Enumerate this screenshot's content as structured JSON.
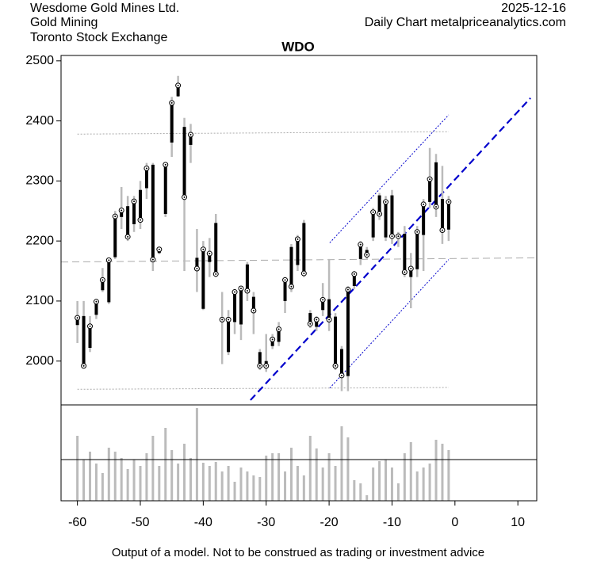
{
  "chart_data": {
    "type": "ohlc",
    "title": "WDO",
    "header_left": [
      "Wesdome Gold Mines Ltd.",
      "Gold Mining",
      "Toronto Stock Exchange"
    ],
    "header_right": [
      "2025-12-16",
      "Daily Chart metalpriceanalytics.com"
    ],
    "footer": "Output of a model. Not to be construed as trading or investment advice",
    "x": [
      -60,
      -59,
      -58,
      -57,
      -56,
      -55,
      -54,
      -53,
      -52,
      -51,
      -50,
      -49,
      -48,
      -47,
      -46,
      -45,
      -44,
      -43,
      -42,
      -41,
      -40,
      -39,
      -38,
      -37,
      -36,
      -35,
      -34,
      -33,
      -32,
      -31,
      -30,
      -29,
      -28,
      -27,
      -26,
      -25,
      -24,
      -23,
      -22,
      -21,
      -20,
      -19,
      -18,
      -17,
      -16,
      -15,
      -14,
      -13,
      -12,
      -11,
      -10,
      -9,
      -8,
      -7,
      -6,
      -5,
      -4,
      -3,
      -2,
      -1
    ],
    "open": [
      2060,
      2075,
      2022,
      2077,
      2118,
      2098,
      2173,
      2240,
      2258,
      2228,
      2285,
      2288,
      2327,
      2180,
      2245,
      2364,
      2441,
      2390,
      2360,
      2172,
      2087,
      2165,
      2230,
      2069,
      2015,
      2065,
      2061,
      2161,
      2107,
      2015,
      2000,
      2025,
      2032,
      2100,
      2190,
      2160,
      2230,
      2080,
      2057,
      2085,
      2103,
      2074,
      2020,
      1975,
      2125,
      2170,
      2185,
      2206,
      2276,
      2206,
      2276,
      2210,
      2212,
      2140,
      2153,
      2210,
      2265,
      2331,
      2270,
      2219
    ],
    "high": [
      2100,
      2100,
      2075,
      2100,
      2155,
      2170,
      2250,
      2290,
      2275,
      2275,
      2300,
      2330,
      2330,
      2190,
      2330,
      2440,
      2475,
      2405,
      2395,
      2220,
      2200,
      2205,
      2245,
      2115,
      2085,
      2120,
      2125,
      2165,
      2115,
      2020,
      2045,
      2045,
      2065,
      2140,
      2195,
      2210,
      2235,
      2085,
      2075,
      2130,
      2170,
      2080,
      2025,
      2125,
      2150,
      2200,
      2190,
      2255,
      2280,
      2275,
      2285,
      2215,
      2225,
      2180,
      2225,
      2270,
      2355,
      2345,
      2325,
      2275
    ],
    "low": [
      2030,
      1990,
      2015,
      2070,
      2115,
      2095,
      2170,
      2220,
      2200,
      2215,
      2220,
      2270,
      2150,
      2178,
      2240,
      2340,
      2440,
      2150,
      2330,
      2115,
      2085,
      2140,
      2140,
      1995,
      2010,
      2045,
      2035,
      2100,
      2045,
      1985,
      1982,
      2020,
      2025,
      2080,
      2115,
      2150,
      2140,
      2055,
      2050,
      2075,
      2050,
      1985,
      1950,
      1950,
      2120,
      2160,
      2170,
      2200,
      2235,
      2200,
      2195,
      2190,
      2140,
      2088,
      2140,
      2150,
      2255,
      2240,
      2195,
      2200
    ],
    "close": [
      2072,
      1992,
      2058,
      2099,
      2135,
      2168,
      2241,
      2251,
      2207,
      2266,
      2235,
      2321,
      2169,
      2186,
      2327,
      2430,
      2459,
      2273,
      2377,
      2154,
      2186,
      2179,
      2145,
      2069,
      2069,
      2115,
      2121,
      2117,
      2084,
      1992,
      1992,
      2036,
      2053,
      2135,
      2124,
      2203,
      2146,
      2062,
      2069,
      2102,
      2069,
      1992,
      1976,
      2119,
      2145,
      2194,
      2177,
      2248,
      2245,
      2265,
      2208,
      2208,
      2148,
      2154,
      2215,
      2261,
      2303,
      2257,
      2218,
      2265
    ],
    "volume": [
      82,
      52,
      62,
      47,
      35,
      67,
      62,
      54,
      40,
      52,
      44,
      60,
      82,
      44,
      92,
      64,
      47,
      72,
      54,
      117,
      48,
      44,
      49,
      37,
      44,
      24,
      42,
      37,
      32,
      30,
      57,
      60,
      60,
      37,
      67,
      44,
      32,
      82,
      66,
      42,
      60,
      44,
      94,
      80,
      26,
      22,
      7,
      42,
      50,
      52,
      42,
      22,
      60,
      74,
      37,
      42,
      47,
      77,
      72,
      64
    ],
    "range_color": "#bbbbbb",
    "body_color": "#000000",
    "volume_color": "#bbbbbb",
    "lines": [
      {
        "x": [
          -62.6,
          13
        ],
        "y": [
          2165,
          2172
        ],
        "color": "#aaaaaa",
        "style": "dashed"
      },
      {
        "x": [
          -60,
          -1
        ],
        "y": [
          2378,
          2382
        ],
        "color": "#aaaaaa",
        "style": "dotted"
      },
      {
        "x": [
          -60,
          -1
        ],
        "y": [
          1953,
          1956
        ],
        "color": "#aaaaaa",
        "style": "dotted"
      },
      {
        "x": [
          -32.5,
          12
        ],
        "y": [
          1935,
          2438
        ],
        "color": "#0000cc",
        "style": "dashed"
      },
      {
        "x": [
          -19.9,
          -1
        ],
        "y": [
          2197,
          2410
        ],
        "color": "#0000cc",
        "style": "dotted"
      },
      {
        "x": [
          -19.9,
          -1
        ],
        "y": [
          1955,
          2169
        ],
        "color": "#0000cc",
        "style": "dotted"
      }
    ],
    "xlim": [
      -62.6,
      13
    ],
    "ylim": [
      1927,
      2509
    ],
    "xticks": [
      -60,
      -50,
      -40,
      -30,
      -20,
      -10,
      0,
      10
    ],
    "yticks": [
      2000,
      2100,
      2200,
      2300,
      2400,
      2500
    ]
  }
}
